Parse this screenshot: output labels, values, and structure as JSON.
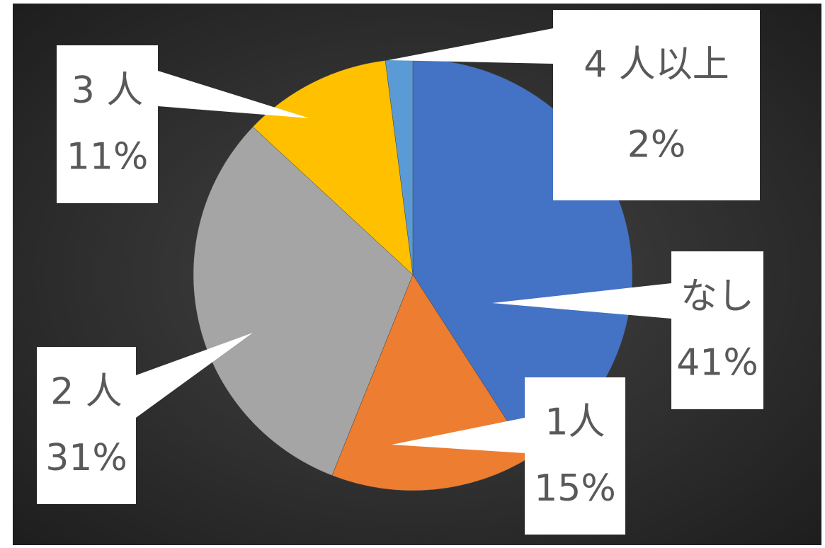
{
  "chart_data": {
    "type": "pie",
    "categories": [
      "なし",
      "1人",
      "2 人",
      "3 人",
      "4 人以上"
    ],
    "values": [
      41,
      15,
      31,
      11,
      2
    ],
    "value_labels": [
      "41%",
      "15%",
      "31%",
      "11%",
      "2%"
    ],
    "colors": [
      "#4472c4",
      "#ed7d31",
      "#a5a5a5",
      "#ffc000",
      "#5b9bd5"
    ]
  }
}
